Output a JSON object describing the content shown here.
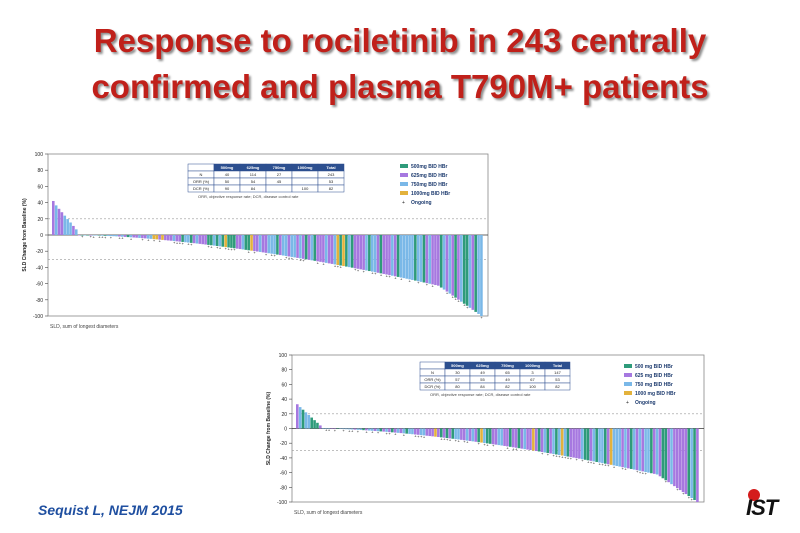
{
  "slide": {
    "title_line1": "Response to rociletinib in 243 centrally",
    "title_line2": "confirmed and plasma T790M+ patients",
    "citation": "Sequist L, NEJM 2015",
    "logo_text": "IST"
  },
  "colors": {
    "title": "#c0201a",
    "citation": "#1f4fa0",
    "dose_500": "#2e9b7a",
    "dose_625": "#a678e0",
    "dose_750": "#7ab8e8",
    "dose_1000": "#e3b23c"
  },
  "chart_data": [
    {
      "type": "bar",
      "subtype": "waterfall",
      "ylabel": "SLD Change from Baseline (%)",
      "ylim": [
        -100,
        100
      ],
      "yticks": [
        100,
        80,
        60,
        40,
        20,
        0,
        -20,
        -40,
        -60,
        -80,
        -100
      ],
      "reference_lines": [
        20,
        -30
      ],
      "footnote": "SLD, sum of longest diameters",
      "legend": [
        "500mg BID HBr",
        "625mg BID HBr",
        "750mg BID HBr",
        "1000mg BID HBr"
      ],
      "ongoing_label": "Ongoing",
      "n_bars": 150,
      "max_value": 42,
      "min_value": -100,
      "table": {
        "headers": [
          "",
          "500mg",
          "625mg",
          "750mg",
          "1000mg",
          "Total"
        ],
        "rows": [
          [
            "N",
            "40",
            "114",
            "27",
            "",
            "243"
          ],
          [
            "ORR (%)",
            "50",
            "54",
            "45",
            "",
            "53"
          ],
          [
            "DCR (%)",
            "90",
            "84",
            "",
            "100",
            "82"
          ]
        ],
        "note": "ORR, objective response rate; DCR, disease control rate"
      }
    },
    {
      "type": "bar",
      "subtype": "waterfall",
      "ylabel": "SLD Change from Baseline (%)",
      "ylim": [
        -100,
        100
      ],
      "yticks": [
        100,
        80,
        60,
        40,
        20,
        0,
        -20,
        -40,
        -60,
        -80,
        -100
      ],
      "reference_lines": [
        20,
        -30
      ],
      "footnote": "SLD, sum of longest diameters",
      "legend": [
        "500 mg BID HBr",
        "625 mg BID HBr",
        "750 mg BID HBr",
        "1000 mg BID HBr"
      ],
      "ongoing_label": "Ongoing",
      "n_bars": 140,
      "max_value": 33,
      "min_value": -100,
      "table": {
        "headers": [
          "",
          "500mg",
          "625mg",
          "750mg",
          "1000mg",
          "Total"
        ],
        "rows": [
          [
            "N",
            "30",
            "49",
            "65",
            "3",
            "147"
          ],
          [
            "ORR (%)",
            "57",
            "55",
            "49",
            "67",
            "53"
          ],
          [
            "DCR (%)",
            "80",
            "84",
            "82",
            "100",
            "82"
          ]
        ],
        "note": "ORR, objective response rate; DCR, disease control rate"
      }
    }
  ]
}
